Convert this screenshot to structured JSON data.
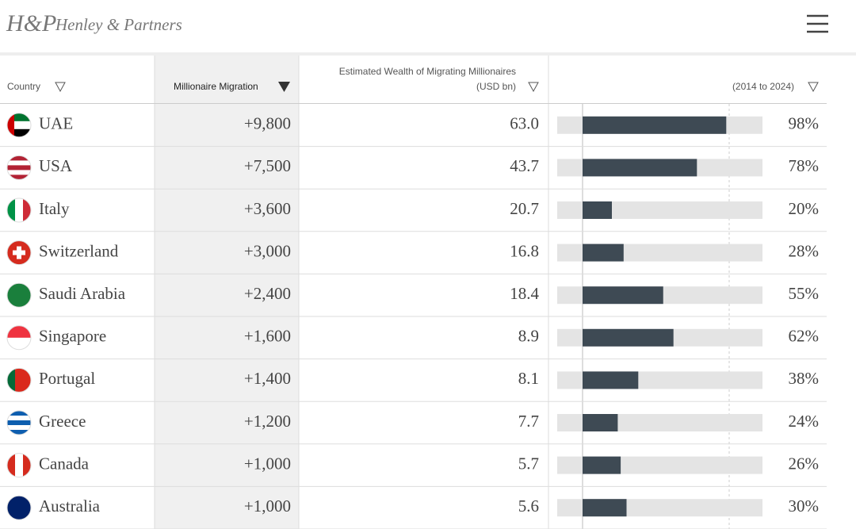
{
  "header": {
    "logo": "H&P",
    "brand": "Henley & Partners"
  },
  "table": {
    "columns": {
      "country": "Country",
      "migration": "Millionaire Migration",
      "wealth": [
        "Estimated Wealth of Migrating Millionaires",
        "(USD bn)"
      ],
      "growth": "(2014 to 2024)"
    },
    "growth_xlim": [
      0,
      100
    ],
    "rows": [
      {
        "country": "UAE",
        "migration": "+9,800",
        "wealth": "63.0",
        "growth": 98,
        "growth_label": "98%"
      },
      {
        "country": "USA",
        "migration": "+7,500",
        "wealth": "43.7",
        "growth": 78,
        "growth_label": "78%"
      },
      {
        "country": "Italy",
        "migration": "+3,600",
        "wealth": "20.7",
        "growth": 20,
        "growth_label": "20%"
      },
      {
        "country": "Switzerland",
        "migration": "+3,000",
        "wealth": "16.8",
        "growth": 28,
        "growth_label": "28%"
      },
      {
        "country": "Saudi Arabia",
        "migration": "+2,400",
        "wealth": "18.4",
        "growth": 55,
        "growth_label": "55%"
      },
      {
        "country": "Singapore",
        "migration": "+1,600",
        "wealth": "8.9",
        "growth": 62,
        "growth_label": "62%"
      },
      {
        "country": "Portugal",
        "migration": "+1,400",
        "wealth": "8.1",
        "growth": 38,
        "growth_label": "38%"
      },
      {
        "country": "Greece",
        "migration": "+1,200",
        "wealth": "7.7",
        "growth": 24,
        "growth_label": "24%"
      },
      {
        "country": "Canada",
        "migration": "+1,000",
        "wealth": "5.7",
        "growth": 26,
        "growth_label": "26%"
      },
      {
        "country": "Australia",
        "migration": "+1,000",
        "wealth": "5.6",
        "growth": 30,
        "growth_label": "30%"
      }
    ]
  }
}
